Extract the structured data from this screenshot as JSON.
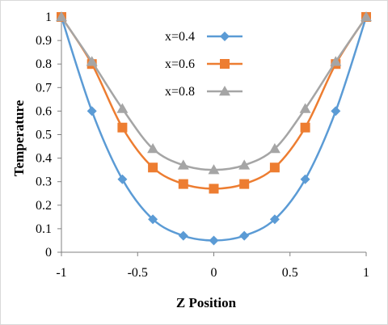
{
  "chart_data": {
    "type": "line",
    "title": "",
    "xlabel": "Z Position",
    "ylabel": "Temperature",
    "xlim": [
      -1,
      1
    ],
    "ylim": [
      0,
      1
    ],
    "x_ticks": [
      "-1",
      "-0.5",
      "0",
      "0.5",
      "1"
    ],
    "y_ticks": [
      "0",
      "0.1",
      "0.2",
      "0.3",
      "0.4",
      "0.5",
      "0.6",
      "0.7",
      "0.8",
      "0.9",
      "1"
    ],
    "grid": false,
    "legend_position": "top-center",
    "x": [
      -1,
      -0.8,
      -0.6,
      -0.4,
      -0.2,
      0,
      0.2,
      0.4,
      0.6,
      0.8,
      1
    ],
    "series": [
      {
        "name": "x=0.4",
        "color": "#5b9bd5",
        "marker": "diamond",
        "values": [
          1.0,
          0.6,
          0.31,
          0.14,
          0.07,
          0.05,
          0.07,
          0.14,
          0.31,
          0.6,
          1.0
        ]
      },
      {
        "name": "x=0.6",
        "color": "#ed7d31",
        "marker": "square",
        "values": [
          1.0,
          0.8,
          0.53,
          0.36,
          0.29,
          0.27,
          0.29,
          0.36,
          0.53,
          0.8,
          1.0
        ]
      },
      {
        "name": "x=0.8",
        "color": "#a5a5a5",
        "marker": "triangle",
        "values": [
          1.0,
          0.81,
          0.61,
          0.44,
          0.37,
          0.35,
          0.37,
          0.44,
          0.61,
          0.81,
          1.0
        ]
      }
    ]
  }
}
